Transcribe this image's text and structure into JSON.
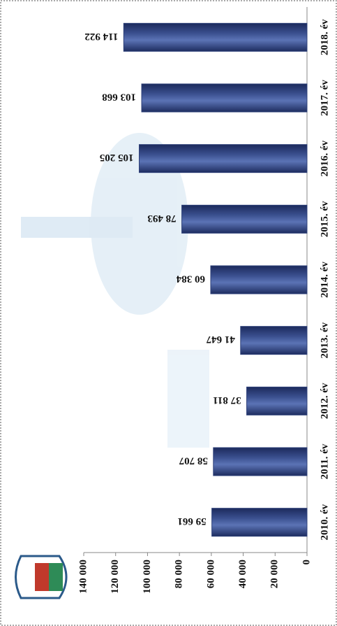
{
  "chart_data": {
    "type": "bar",
    "categories": [
      "2010. év",
      "2011. év",
      "2012. év",
      "2013. év",
      "2014. év",
      "2015. év",
      "2016. év",
      "2017. év",
      "2018. év"
    ],
    "values": [
      59661,
      58707,
      37811,
      41647,
      60384,
      78493,
      105205,
      103668,
      114922
    ],
    "value_labels": [
      "59 661",
      "58 707",
      "37 811",
      "41 647",
      "60 384",
      "78 493",
      "105 205",
      "103 668",
      "114 922"
    ],
    "color": "#2c3f78",
    "ylim": [
      0,
      140000
    ],
    "yticks": [
      0,
      {
        "value": 20000,
        "label": "20 000"
      },
      {
        "value": 40000,
        "label": "40 000"
      },
      {
        "value": 60000,
        "label": "60 000"
      },
      {
        "value": 80000,
        "label": "80 000"
      },
      {
        "value": 100000,
        "label": "100 000"
      },
      {
        "value": 120000,
        "label": "120 000"
      },
      {
        "value": 140000,
        "label": "140 000"
      }
    ]
  }
}
